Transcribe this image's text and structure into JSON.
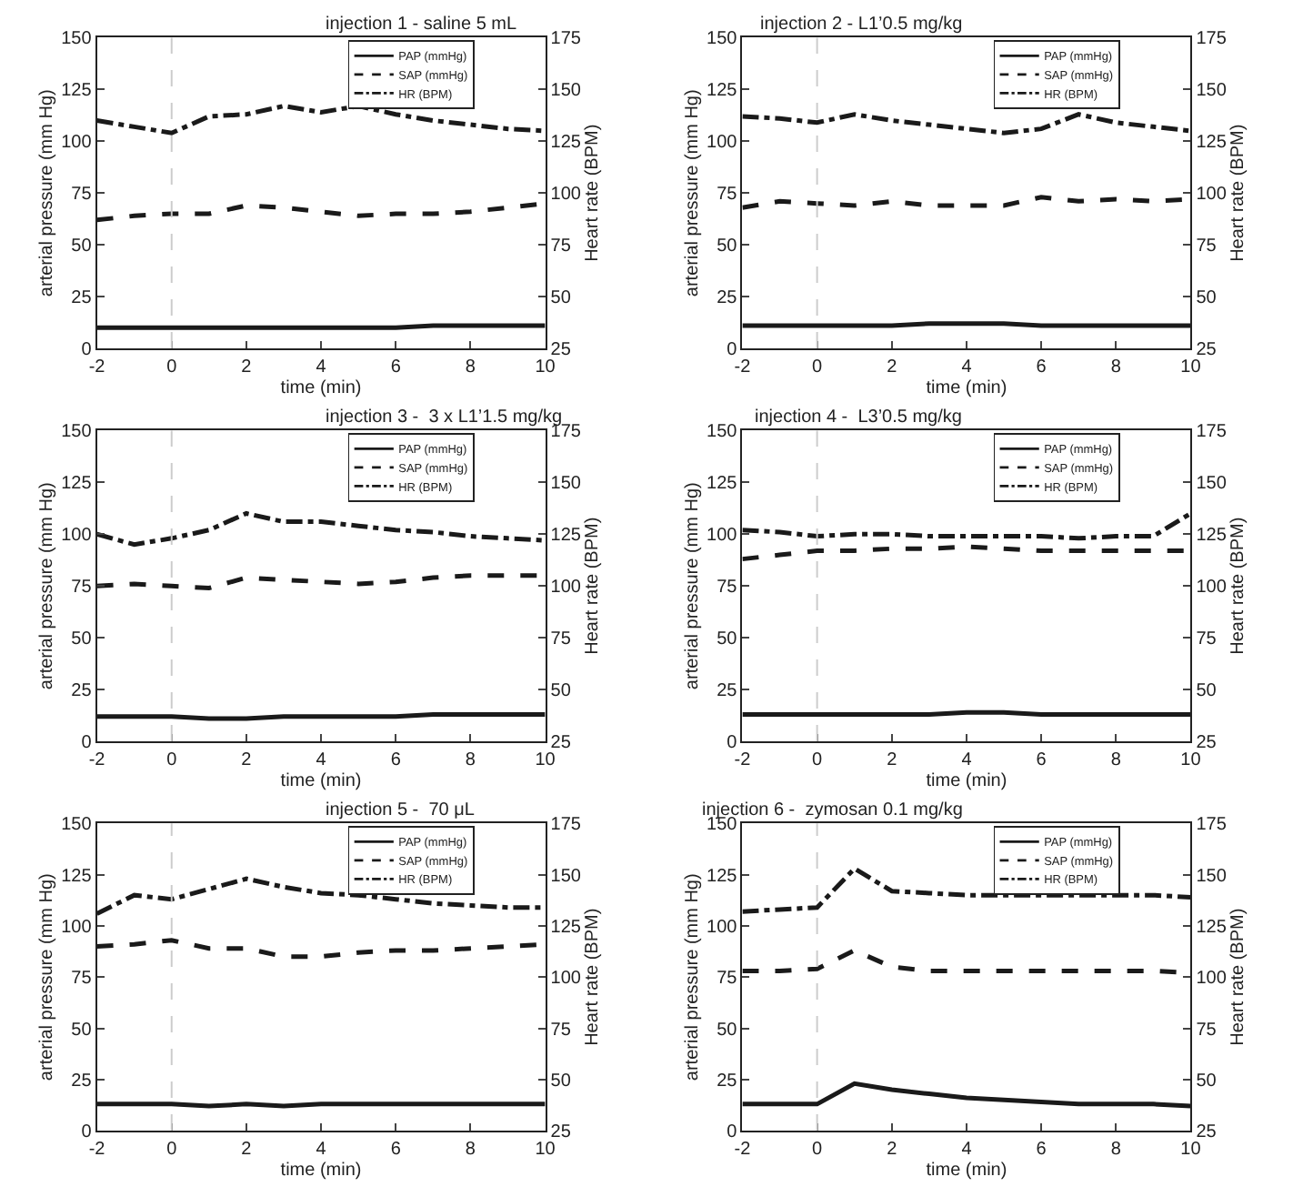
{
  "chart_data": [
    {
      "type": "line",
      "title": "injection 1 - saline 5 mL",
      "xlabel": "time (min)",
      "ylabel": "arterial pressure (mm Hg)",
      "y2label": "Heart rate (BPM)",
      "x": [
        -2,
        -1,
        0,
        1,
        2,
        3,
        4,
        5,
        6,
        7,
        8,
        9,
        10
      ],
      "xlim": [
        -2,
        10
      ],
      "xticks": [
        -2,
        0,
        2,
        4,
        6,
        8,
        10
      ],
      "ylim": [
        0,
        150
      ],
      "yticks": [
        0,
        25,
        50,
        75,
        100,
        125,
        150
      ],
      "y2lim": [
        25,
        175
      ],
      "y2ticks": [
        25,
        50,
        75,
        100,
        125,
        150,
        175
      ],
      "legend": "top right",
      "ref_lines": [
        {
          "axis": "x",
          "value": 0,
          "color": "#cccccc",
          "line_style": "dashed"
        }
      ],
      "series": [
        {
          "name": "PAP (mmHg)",
          "color": "#1a1a1a",
          "line_style": "solid",
          "values": [
            10,
            10,
            10,
            10,
            10,
            10,
            10,
            10,
            10,
            11,
            11,
            11,
            11
          ]
        },
        {
          "name": "SAP (mmHg)",
          "color": "#1a1a1a",
          "line_style": "dashed",
          "values": [
            62,
            64,
            65,
            65,
            69,
            68,
            66,
            64,
            65,
            65,
            66,
            68,
            70
          ]
        },
        {
          "name": "HR (BPM)",
          "color": "#1a1a1a",
          "line_style": "dashdot",
          "axis": "y2",
          "values": [
            135,
            132,
            129,
            137,
            138,
            142,
            139,
            142,
            138,
            135,
            133,
            131,
            130
          ]
        }
      ]
    },
    {
      "type": "line",
      "title": "injection 2 - L1’0.5 mg/kg",
      "xlabel": "time (min)",
      "ylabel": "arterial pressure (mm Hg)",
      "y2label": "Heart rate (BPM)",
      "x": [
        -2,
        -1,
        0,
        1,
        2,
        3,
        4,
        5,
        6,
        7,
        8,
        9,
        10
      ],
      "xlim": [
        -2,
        10
      ],
      "xticks": [
        -2,
        0,
        2,
        4,
        6,
        8,
        10
      ],
      "ylim": [
        0,
        150
      ],
      "yticks": [
        0,
        25,
        50,
        75,
        100,
        125,
        150
      ],
      "y2lim": [
        25,
        175
      ],
      "y2ticks": [
        25,
        50,
        75,
        100,
        125,
        150,
        175
      ],
      "legend": "top right",
      "ref_lines": [
        {
          "axis": "x",
          "value": 0,
          "color": "#cccccc",
          "line_style": "dashed"
        }
      ],
      "series": [
        {
          "name": "PAP (mmHg)",
          "color": "#1a1a1a",
          "line_style": "solid",
          "values": [
            11,
            11,
            11,
            11,
            11,
            12,
            12,
            12,
            11,
            11,
            11,
            11,
            11
          ]
        },
        {
          "name": "SAP (mmHg)",
          "color": "#1a1a1a",
          "line_style": "dashed",
          "values": [
            68,
            71,
            70,
            69,
            71,
            69,
            69,
            69,
            73,
            71,
            72,
            71,
            72
          ]
        },
        {
          "name": "HR (BPM)",
          "color": "#1a1a1a",
          "line_style": "dashdot",
          "axis": "y2",
          "values": [
            137,
            136,
            134,
            138,
            135,
            133,
            131,
            129,
            131,
            138,
            134,
            132,
            130
          ]
        }
      ]
    },
    {
      "type": "line",
      "title": "injection 3 -  3 x L1’1.5 mg/kg",
      "xlabel": "time (min)",
      "ylabel": "arterial pressure (mm Hg)",
      "y2label": "Heart rate (BPM)",
      "x": [
        -2,
        -1,
        0,
        1,
        2,
        3,
        4,
        5,
        6,
        7,
        8,
        9,
        10
      ],
      "xlim": [
        -2,
        10
      ],
      "xticks": [
        -2,
        0,
        2,
        4,
        6,
        8,
        10
      ],
      "ylim": [
        0,
        150
      ],
      "yticks": [
        0,
        25,
        50,
        75,
        100,
        125,
        150
      ],
      "y2lim": [
        25,
        175
      ],
      "y2ticks": [
        25,
        50,
        75,
        100,
        125,
        150,
        175
      ],
      "legend": "top right",
      "ref_lines": [
        {
          "axis": "x",
          "value": 0,
          "color": "#cccccc",
          "line_style": "dashed"
        }
      ],
      "series": [
        {
          "name": "PAP (mmHg)",
          "color": "#1a1a1a",
          "line_style": "solid",
          "values": [
            12,
            12,
            12,
            11,
            11,
            12,
            12,
            12,
            12,
            13,
            13,
            13,
            13
          ]
        },
        {
          "name": "SAP (mmHg)",
          "color": "#1a1a1a",
          "line_style": "dashed",
          "values": [
            75,
            76,
            75,
            74,
            79,
            78,
            77,
            76,
            77,
            79,
            80,
            80,
            80
          ]
        },
        {
          "name": "HR (BPM)",
          "color": "#1a1a1a",
          "line_style": "dashdot",
          "axis": "y2",
          "values": [
            125,
            120,
            123,
            127,
            135,
            131,
            131,
            129,
            127,
            126,
            124,
            123,
            122
          ]
        }
      ]
    },
    {
      "type": "line",
      "title": "injection 4 -  L3’0.5 mg/kg",
      "xlabel": "time (min)",
      "ylabel": "arterial pressure (mm Hg)",
      "y2label": "Heart rate (BPM)",
      "x": [
        -2,
        -1,
        0,
        1,
        2,
        3,
        4,
        5,
        6,
        7,
        8,
        9,
        10
      ],
      "xlim": [
        -2,
        10
      ],
      "xticks": [
        -2,
        0,
        2,
        4,
        6,
        8,
        10
      ],
      "ylim": [
        0,
        150
      ],
      "yticks": [
        0,
        25,
        50,
        75,
        100,
        125,
        150
      ],
      "y2lim": [
        25,
        175
      ],
      "y2ticks": [
        25,
        50,
        75,
        100,
        125,
        150,
        175
      ],
      "legend": "top right",
      "ref_lines": [
        {
          "axis": "x",
          "value": 0,
          "color": "#cccccc",
          "line_style": "dashed"
        }
      ],
      "series": [
        {
          "name": "PAP (mmHg)",
          "color": "#1a1a1a",
          "line_style": "solid",
          "values": [
            13,
            13,
            13,
            13,
            13,
            13,
            14,
            14,
            13,
            13,
            13,
            13,
            13
          ]
        },
        {
          "name": "SAP (mmHg)",
          "color": "#1a1a1a",
          "line_style": "dashed",
          "values": [
            88,
            90,
            92,
            92,
            93,
            93,
            94,
            93,
            92,
            92,
            92,
            92,
            92
          ]
        },
        {
          "name": "HR (BPM)",
          "color": "#1a1a1a",
          "line_style": "dashdot",
          "axis": "y2",
          "values": [
            127,
            126,
            124,
            125,
            125,
            124,
            124,
            124,
            124,
            123,
            124,
            124,
            135
          ]
        }
      ]
    },
    {
      "type": "line",
      "title": "injection 5 -  70 μL",
      "xlabel": "time (min)",
      "ylabel": "arterial pressure (mm Hg)",
      "y2label": "Heart rate (BPM)",
      "x": [
        -2,
        -1,
        0,
        1,
        2,
        3,
        4,
        5,
        6,
        7,
        8,
        9,
        10
      ],
      "xlim": [
        -2,
        10
      ],
      "xticks": [
        -2,
        0,
        2,
        4,
        6,
        8,
        10
      ],
      "ylim": [
        0,
        150
      ],
      "yticks": [
        0,
        25,
        50,
        75,
        100,
        125,
        150
      ],
      "y2lim": [
        25,
        175
      ],
      "y2ticks": [
        25,
        50,
        75,
        100,
        125,
        150,
        175
      ],
      "legend": "top right",
      "ref_lines": [
        {
          "axis": "x",
          "value": 0,
          "color": "#cccccc",
          "line_style": "dashed"
        }
      ],
      "series": [
        {
          "name": "PAP (mmHg)",
          "color": "#1a1a1a",
          "line_style": "solid",
          "values": [
            13,
            13,
            13,
            12,
            13,
            12,
            13,
            13,
            13,
            13,
            13,
            13,
            13
          ]
        },
        {
          "name": "SAP (mmHg)",
          "color": "#1a1a1a",
          "line_style": "dashed",
          "values": [
            90,
            91,
            93,
            89,
            89,
            85,
            85,
            87,
            88,
            88,
            89,
            90,
            91
          ]
        },
        {
          "name": "HR (BPM)",
          "color": "#1a1a1a",
          "line_style": "dashdot",
          "axis": "y2",
          "values": [
            131,
            140,
            138,
            143,
            148,
            144,
            141,
            140,
            138,
            136,
            135,
            134,
            134
          ]
        }
      ]
    },
    {
      "type": "line",
      "title": "injection 6 -  zymosan 0.1 mg/kg",
      "xlabel": "time (min)",
      "ylabel": "arterial pressure (mm Hg)",
      "y2label": "Heart rate (BPM)",
      "x": [
        -2,
        -1,
        0,
        1,
        2,
        3,
        4,
        5,
        6,
        7,
        8,
        9,
        10
      ],
      "xlim": [
        -2,
        10
      ],
      "xticks": [
        -2,
        0,
        2,
        4,
        6,
        8,
        10
      ],
      "ylim": [
        0,
        150
      ],
      "yticks": [
        0,
        25,
        50,
        75,
        100,
        125,
        150
      ],
      "y2lim": [
        25,
        175
      ],
      "y2ticks": [
        25,
        50,
        75,
        100,
        125,
        150,
        175
      ],
      "legend": "top right",
      "ref_lines": [
        {
          "axis": "x",
          "value": 0,
          "color": "#cccccc",
          "line_style": "dashed"
        }
      ],
      "series": [
        {
          "name": "PAP (mmHg)",
          "color": "#1a1a1a",
          "line_style": "solid",
          "values": [
            13,
            13,
            13,
            23,
            20,
            18,
            16,
            15,
            14,
            13,
            13,
            13,
            12
          ]
        },
        {
          "name": "SAP (mmHg)",
          "color": "#1a1a1a",
          "line_style": "dashed",
          "values": [
            78,
            78,
            79,
            88,
            80,
            78,
            78,
            78,
            78,
            78,
            78,
            78,
            77
          ]
        },
        {
          "name": "HR (BPM)",
          "color": "#1a1a1a",
          "line_style": "dashdot",
          "axis": "y2",
          "values": [
            132,
            133,
            134,
            153,
            142,
            141,
            140,
            140,
            140,
            140,
            140,
            140,
            139
          ]
        }
      ]
    }
  ]
}
